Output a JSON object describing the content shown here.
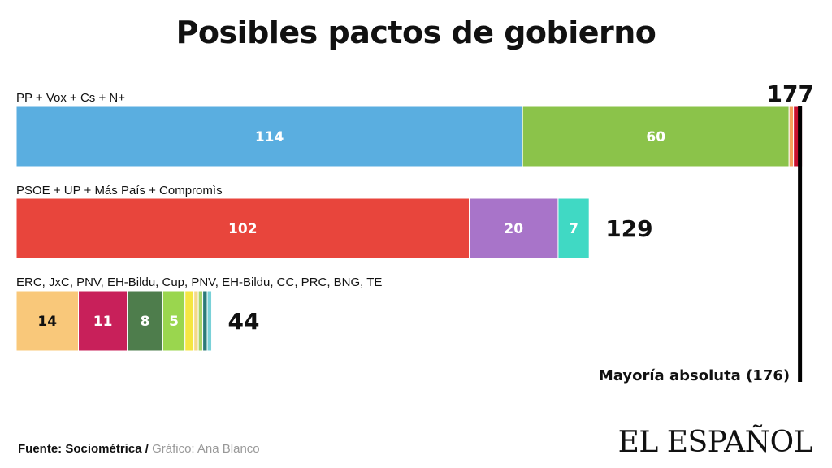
{
  "title": "Posibles pactos de gobierno",
  "footer": {
    "source": "Fuente: Sociométrica",
    "separator": " / ",
    "credit": "Gráfico: Ana Blanco"
  },
  "brand": "EL ESPAÑOL",
  "chart_data": {
    "type": "bar",
    "orientation": "horizontal",
    "stacked": true,
    "xlim": [
      0,
      180
    ],
    "majority_line": {
      "value": 176,
      "label": "Mayoría absoluta (176)"
    },
    "groups": [
      {
        "label": "PP + Vox + Cs + N+",
        "total": "177",
        "segments": [
          {
            "value": 114,
            "label": "114",
            "color": "#5aaee0"
          },
          {
            "value": 60,
            "label": "60",
            "color": "#8bc34a"
          },
          {
            "value": 1,
            "label": "",
            "color": "#f5a25d"
          },
          {
            "value": 2,
            "label": "",
            "color": "#c8102e"
          }
        ]
      },
      {
        "label": "PSOE + UP + Más País + Compromìs",
        "total": "129",
        "segments": [
          {
            "value": 102,
            "label": "102",
            "color": "#e8453c"
          },
          {
            "value": 20,
            "label": "20",
            "color": "#a874c9"
          },
          {
            "value": 7,
            "label": "7",
            "color": "#40d9c4"
          }
        ]
      },
      {
        "label": "ERC, JxC, PNV, EH-Bildu, Cup, PNV, EH-Bildu, CC, PRC, BNG, TE",
        "total": "44",
        "segments": [
          {
            "value": 14,
            "label": "14",
            "color": "#f9c87a"
          },
          {
            "value": 11,
            "label": "11",
            "color": "#c8205a"
          },
          {
            "value": 8,
            "label": "8",
            "color": "#4e7d4c"
          },
          {
            "value": 5,
            "label": "5",
            "color": "#9ad64e"
          },
          {
            "value": 2,
            "label": "",
            "color": "#f5e642"
          },
          {
            "value": 1,
            "label": "",
            "color": "#f3d98a"
          },
          {
            "value": 1,
            "label": "",
            "color": "#a9d46a"
          },
          {
            "value": 1,
            "label": "",
            "color": "#2b7a78"
          },
          {
            "value": 1,
            "label": "",
            "color": "#7ad1d8"
          }
        ]
      }
    ]
  }
}
